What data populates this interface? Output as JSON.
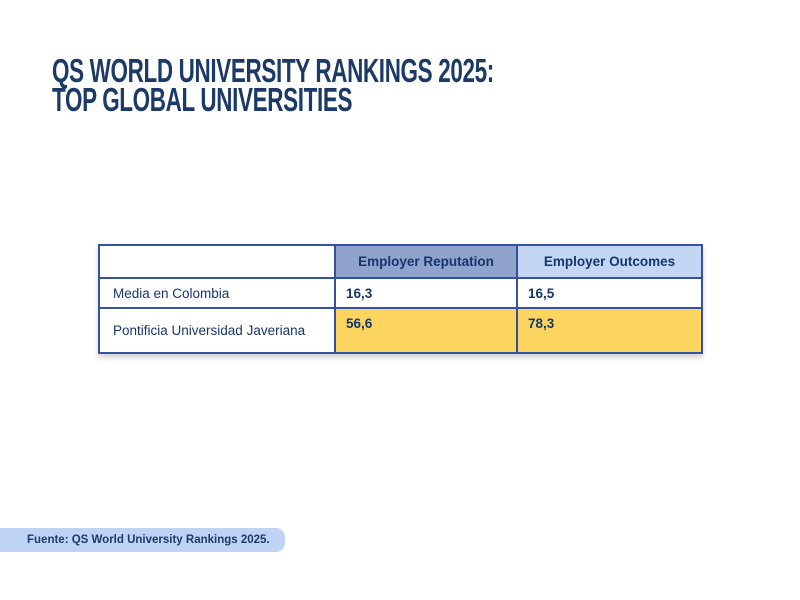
{
  "title": {
    "line1": "QS WORLD UNIVERSITY RANKINGS 2025:",
    "line2": "TOP GLOBAL UNIVERSITIES"
  },
  "table": {
    "columns": [
      "Employer Reputation",
      "Employer Outcomes"
    ],
    "rows": [
      {
        "label": "Media en Colombia",
        "values": [
          "16,3",
          "16,5"
        ],
        "highlighted": false
      },
      {
        "label": "Pontificia Universidad Javeriana",
        "values": [
          "56,6",
          "78,3"
        ],
        "highlighted": true
      }
    ]
  },
  "footer": {
    "text": "Fuente: QS World University Rankings 2025."
  },
  "colors": {
    "title_text": "#1C3A68",
    "table_border": "#3551A1",
    "table_text": "#17366B",
    "header_reputation_bg": "#8FA3CD",
    "header_outcomes_bg": "#C3D6F4",
    "highlight_bg": "#FBD55F",
    "footer_bg": "#BFD4F5"
  },
  "chart_data": {
    "type": "table",
    "title": "QS World University Rankings 2025: Top Global Universities",
    "categories": [
      "Employer Reputation",
      "Employer Outcomes"
    ],
    "series": [
      {
        "name": "Media en Colombia",
        "values": [
          16.3,
          16.5
        ]
      },
      {
        "name": "Pontificia Universidad Javeriana",
        "values": [
          56.6,
          78.3
        ]
      }
    ],
    "annotations": [
      "Fuente: QS World University Rankings 2025."
    ],
    "layout": {
      "highlighted_row": "Pontificia Universidad Javeriana",
      "decimal_separator": "comma"
    }
  }
}
